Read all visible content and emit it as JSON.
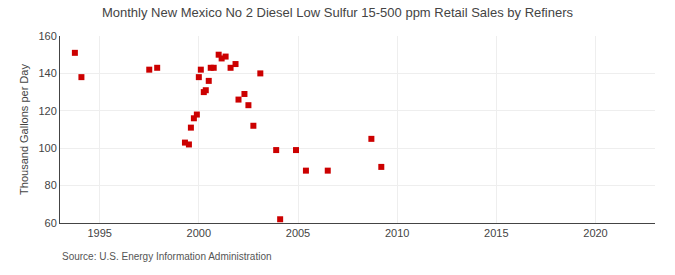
{
  "chart_data": {
    "type": "scatter",
    "title": "Monthly New Mexico No 2 Diesel Low Sulfur 15-500 ppm Retail Sales by Refiners",
    "ylabel": "Thousand Gallons per Day",
    "annotations": [
      "Source: U.S. Energy Information Administration"
    ],
    "x": [
      1993.75,
      1994.08,
      1997.5,
      1997.9,
      1999.3,
      1999.5,
      1999.6,
      1999.75,
      1999.9,
      2000.0,
      2000.1,
      2000.25,
      2000.35,
      2000.5,
      2000.6,
      2000.75,
      2001.0,
      2001.15,
      2001.35,
      2001.6,
      2001.85,
      2002.0,
      2002.3,
      2002.5,
      2002.75,
      2003.1,
      2003.9,
      2004.1,
      2004.9,
      2005.4,
      2006.5,
      2008.7,
      2009.2
    ],
    "values": [
      151,
      138,
      142,
      143,
      103,
      102,
      111,
      116,
      118,
      138,
      142,
      130,
      131,
      136,
      143,
      143,
      150,
      148,
      149,
      143,
      145,
      126,
      129,
      123,
      112,
      140,
      99,
      62,
      99,
      88,
      88,
      105,
      90
    ],
    "color": "#cc0000",
    "marker": "square",
    "xlim": [
      1993,
      2023
    ],
    "xticks": [
      1995,
      2000,
      2005,
      2010,
      2015,
      2020
    ],
    "ylim": [
      60,
      160
    ],
    "yticks": [
      60,
      80,
      100,
      120,
      140,
      160
    ],
    "grid": true
  }
}
